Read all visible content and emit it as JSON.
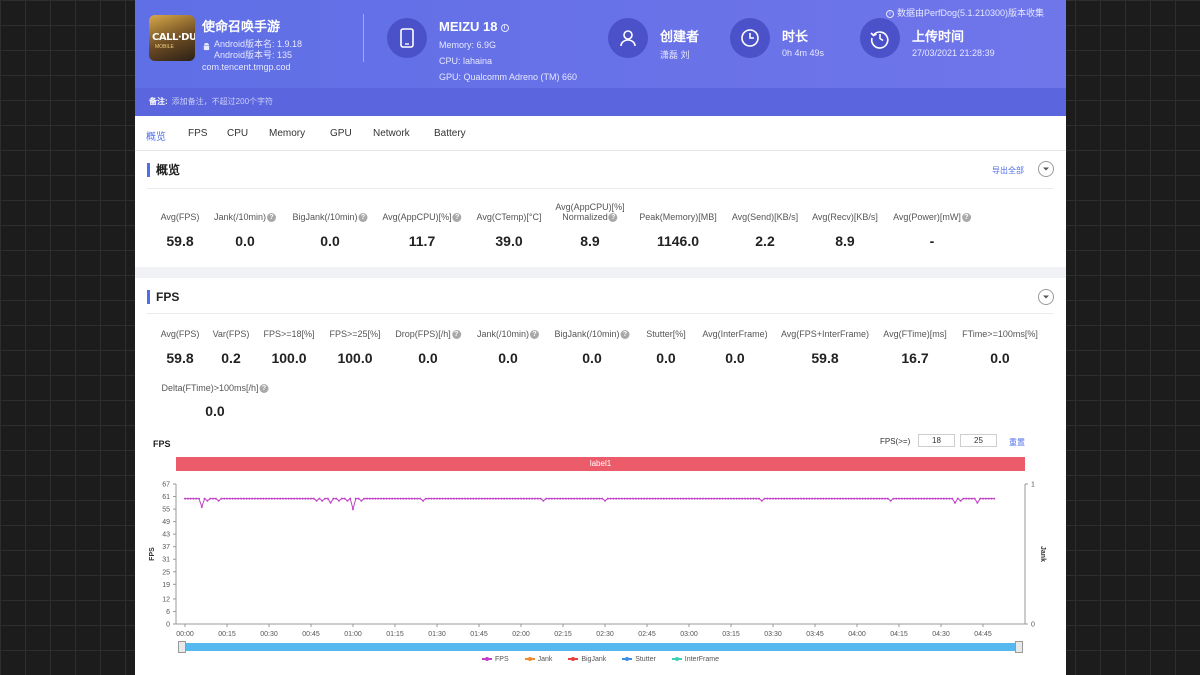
{
  "app": {
    "name": "使命召唤手游",
    "version_name": "Android版本名: 1.9.18",
    "version_code": "Android版本号: 135",
    "package": "com.tencent.tmgp.cod",
    "icon_text_main": "CALL·DUTY",
    "icon_text_sub": "MOBILE"
  },
  "source_note": "数据由PerfDog(5.1.210300)版本收集",
  "device": {
    "name": "MEIZU 18",
    "memory": "Memory: 6.9G",
    "cpu": "CPU: lahaina",
    "gpu": "GPU: Qualcomm Adreno (TM) 660"
  },
  "creator": {
    "title": "创建者",
    "value": "潇磊 刘"
  },
  "duration": {
    "title": "时长",
    "value": "0h 4m 49s"
  },
  "upload": {
    "title": "上传时间",
    "value": "27/03/2021 21:28:39"
  },
  "note": {
    "label": "备注:",
    "placeholder": "添加备注，不超过200个字符"
  },
  "tabs": [
    {
      "label": "概览",
      "active": true
    },
    {
      "label": "FPS"
    },
    {
      "label": "CPU"
    },
    {
      "label": "Memory"
    },
    {
      "label": "GPU"
    },
    {
      "label": "Network"
    },
    {
      "label": "Battery"
    }
  ],
  "overview": {
    "title": "概览",
    "export_label": "导出全部",
    "metrics": [
      {
        "label": "Avg(FPS)",
        "value": "59.8"
      },
      {
        "label": "Jank(/10min)",
        "value": "0.0",
        "help": true
      },
      {
        "label": "BigJank(/10min)",
        "value": "0.0",
        "help": true
      },
      {
        "label": "Avg(AppCPU)[%]",
        "value": "11.7",
        "help": true
      },
      {
        "label": "Avg(CTemp)[°C]",
        "value": "39.0"
      },
      {
        "label": "Avg(AppCPU)[%]",
        "label2": "Normalized",
        "value": "8.9",
        "help": true
      },
      {
        "label": "Peak(Memory)[MB]",
        "value": "1146.0"
      },
      {
        "label": "Avg(Send)[KB/s]",
        "value": "2.2"
      },
      {
        "label": "Avg(Recv)[KB/s]",
        "value": "8.9"
      },
      {
        "label": "Avg(Power)[mW]",
        "value": "-",
        "help": true
      }
    ]
  },
  "fps_panel": {
    "title": "FPS",
    "metrics": [
      {
        "label": "Avg(FPS)",
        "value": "59.8"
      },
      {
        "label": "Var(FPS)",
        "value": "0.2"
      },
      {
        "label": "FPS>=18[%]",
        "value": "100.0"
      },
      {
        "label": "FPS>=25[%]",
        "value": "100.0"
      },
      {
        "label": "Drop(FPS)[/h]",
        "value": "0.0",
        "help": true
      },
      {
        "label": "Jank(/10min)",
        "value": "0.0",
        "help": true
      },
      {
        "label": "BigJank(/10min)",
        "value": "0.0",
        "help": true
      },
      {
        "label": "Stutter[%]",
        "value": "0.0"
      },
      {
        "label": "Avg(InterFrame)",
        "value": "0.0"
      },
      {
        "label": "Avg(FPS+InterFrame)",
        "value": "59.8"
      },
      {
        "label": "Avg(FTime)[ms]",
        "value": "16.7"
      },
      {
        "label": "FTime>=100ms[%]",
        "value": "0.0"
      },
      {
        "label": "Delta(FTime)>100ms[/h]",
        "value": "0.0",
        "help": true
      }
    ],
    "chart_title": "FPS",
    "filter_label": "FPS(>=)",
    "filter_values": [
      "18",
      "25"
    ],
    "reset_label": "重置",
    "label_bar": "label1"
  },
  "chart_data": {
    "type": "line",
    "ylabel": "FPS",
    "y2label": "Jank",
    "ylim": [
      0,
      67
    ],
    "yticks": [
      0,
      6,
      12,
      19,
      25,
      31,
      37,
      43,
      49,
      55,
      61,
      67
    ],
    "y2lim": [
      0,
      1
    ],
    "y2ticks": [
      0,
      1
    ],
    "xticks": [
      "00:00",
      "00:15",
      "00:30",
      "00:45",
      "01:00",
      "01:15",
      "01:30",
      "01:45",
      "02:00",
      "02:15",
      "02:30",
      "02:45",
      "03:00",
      "03:15",
      "03:30",
      "03:45",
      "04:00",
      "04:15",
      "04:30",
      "04:45"
    ],
    "duration_seconds": 289,
    "series": [
      {
        "name": "FPS",
        "color": "#c03fc8",
        "baseline": 60,
        "dips": [
          {
            "t": 6,
            "v": 56
          },
          {
            "t": 8,
            "v": 59
          },
          {
            "t": 12,
            "v": 59
          },
          {
            "t": 47,
            "v": 59
          },
          {
            "t": 49,
            "v": 59
          },
          {
            "t": 52,
            "v": 58
          },
          {
            "t": 55,
            "v": 59
          },
          {
            "t": 58,
            "v": 59
          },
          {
            "t": 60,
            "v": 55
          },
          {
            "t": 63,
            "v": 59
          },
          {
            "t": 85,
            "v": 59
          },
          {
            "t": 128,
            "v": 59
          },
          {
            "t": 150,
            "v": 59
          },
          {
            "t": 206,
            "v": 59
          },
          {
            "t": 252,
            "v": 59
          },
          {
            "t": 275,
            "v": 58
          },
          {
            "t": 277,
            "v": 59
          },
          {
            "t": 283,
            "v": 58
          }
        ]
      },
      {
        "name": "Jank",
        "color": "#f08a2a"
      },
      {
        "name": "BigJank",
        "color": "#e8413c"
      },
      {
        "name": "Stutter",
        "color": "#3d8ee8"
      },
      {
        "name": "InterFrame",
        "color": "#3fd1b5"
      }
    ]
  }
}
